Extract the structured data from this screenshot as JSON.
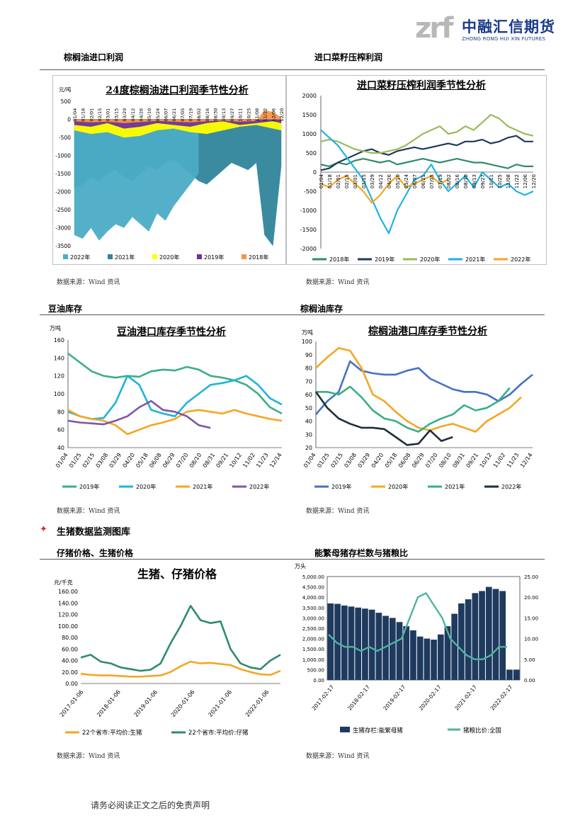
{
  "header": {
    "logo_letters": "zrf",
    "logo_cn": "中融汇信期货",
    "logo_en": "ZHONG RONG HUI XIN FUTURES"
  },
  "sections": {
    "palm_oil_import_profit": "棕榈油进口利润",
    "rapeseed_crush_profit": "进口菜籽压榨利润",
    "soy_oil_stock": "豆油库存",
    "palm_oil_stock": "棕榈油库存",
    "hog_monitor": "生猪数据监测图库",
    "piglet_hog_price": "仔猪价格、生猪价格",
    "sow_hog_grain": "能繁母猪存栏数与猪粮比"
  },
  "source_text": "数据来源：Wind 资讯",
  "footer": "请务必阅读正文之后的免责声明",
  "chart_data": [
    {
      "id": "palm_profit",
      "type": "area",
      "title": "24度棕榈油进口利润季节性分析",
      "ylabel": "元/吨",
      "ylim": [
        -3500,
        500
      ],
      "yticks": [
        500,
        0,
        -500,
        -1000,
        -1500,
        -2000,
        -2500,
        -3000,
        -3500
      ],
      "xticks": [
        "01/04",
        "01/18",
        "02/01",
        "02/15",
        "03/01",
        "03/15",
        "03/29",
        "04/12",
        "04/26",
        "05/10",
        "05/24",
        "06/07",
        "06/21",
        "07/05",
        "07/19",
        "08/02",
        "08/16",
        "08/30",
        "09/13",
        "09/27",
        "10/11",
        "10/25",
        "11/08",
        "11/22",
        "12/06",
        "12/20"
      ],
      "colors": {
        "2022年": "#4bacc6",
        "2021年": "#31859b",
        "2020年": "#ffff00",
        "2019年": "#7030a0",
        "2018年": "#f79646"
      },
      "series": [
        {
          "name": "2022年",
          "x": [
            "01/04",
            "01/18",
            "02/01",
            "02/15",
            "03/01",
            "03/15",
            "03/29",
            "04/12",
            "04/26",
            "05/10",
            "05/24",
            "06/07",
            "06/21",
            "07/05",
            "07/19",
            "08/02"
          ],
          "values": [
            -3200,
            -3300,
            -3000,
            -3350,
            -3100,
            -2900,
            -3000,
            -2700,
            -2900,
            -3100,
            -2600,
            -2800,
            -2400,
            -2100,
            -1800,
            -1500
          ]
        },
        {
          "name": "2021年",
          "x": [
            "01/04",
            "01/18",
            "02/01",
            "02/15",
            "03/01",
            "03/15",
            "03/29",
            "04/12",
            "04/26",
            "05/10",
            "05/24",
            "06/07",
            "06/21",
            "07/05",
            "07/19",
            "08/02",
            "08/16",
            "08/30",
            "09/13",
            "09/27",
            "10/11",
            "10/25",
            "11/08",
            "11/22",
            "12/06",
            "12/20"
          ],
          "values": [
            -1900,
            -1800,
            -1600,
            -1700,
            -1500,
            -1400,
            -1600,
            -1700,
            -1500,
            -1300,
            -1400,
            -1200,
            -1100,
            -1300,
            -1500,
            -1700,
            -1800,
            -1600,
            -1400,
            -1200,
            -1300,
            -1400,
            -1200,
            -3200,
            -3500,
            -1300
          ]
        },
        {
          "name": "2020年",
          "x": [
            "01/04",
            "02/01",
            "03/01",
            "03/29",
            "04/26",
            "05/24",
            "06/21",
            "07/19",
            "08/16",
            "09/13",
            "10/11",
            "11/08",
            "12/06",
            "12/20"
          ],
          "values": [
            -300,
            -400,
            -350,
            -500,
            -450,
            -300,
            -250,
            -350,
            -400,
            -300,
            -200,
            -150,
            -250,
            -300
          ]
        },
        {
          "name": "2019年",
          "x": [
            "01/04",
            "02/01",
            "03/01",
            "03/29",
            "04/26",
            "05/24",
            "06/21",
            "07/19",
            "08/16",
            "09/13",
            "10/11",
            "11/08",
            "12/06",
            "12/20"
          ],
          "values": [
            -150,
            -200,
            -100,
            -250,
            -200,
            -100,
            -150,
            -200,
            -100,
            -50,
            -150,
            -100,
            -50,
            -100
          ]
        },
        {
          "name": "2018年",
          "x": [
            "01/04",
            "02/01",
            "03/01",
            "03/29",
            "04/26",
            "05/24",
            "06/21",
            "07/19",
            "08/16",
            "09/13",
            "10/11",
            "11/08",
            "11/22",
            "12/06",
            "12/20"
          ],
          "values": [
            -50,
            -80,
            -60,
            -100,
            -70,
            -40,
            -60,
            -80,
            -50,
            -30,
            -60,
            -40,
            250,
            200,
            50
          ]
        }
      ],
      "legend": "bottom"
    },
    {
      "id": "rapeseed_profit",
      "type": "line",
      "title": "进口菜籽压榨利润季节性分析",
      "ylim": [
        -2000,
        2000
      ],
      "yticks": [
        2000,
        1500,
        1000,
        500,
        0,
        -500,
        -1000,
        -1500,
        -2000
      ],
      "xticks": [
        "01/04",
        "01/18",
        "02/01",
        "02/15",
        "03/01",
        "03/15",
        "03/29",
        "04/12",
        "04/26",
        "05/10",
        "05/24",
        "06/07",
        "06/21",
        "07/05",
        "07/19",
        "08/02",
        "08/16",
        "08/30",
        "09/13",
        "09/27",
        "10/11",
        "10/25",
        "11/08",
        "11/22",
        "12/06",
        "12/20"
      ],
      "series": [
        {
          "name": "2018年",
          "color": "#2e8b6e",
          "values": [
            200,
            150,
            250,
            200,
            300,
            350,
            300,
            250,
            300,
            200,
            250,
            300,
            350,
            300,
            250,
            300,
            350,
            300,
            250,
            250,
            200,
            150,
            100,
            200,
            150,
            150
          ]
        },
        {
          "name": "2019年",
          "color": "#1f3a5f",
          "values": [
            50,
            100,
            250,
            350,
            450,
            550,
            600,
            500,
            450,
            550,
            600,
            650,
            600,
            650,
            700,
            750,
            700,
            800,
            800,
            850,
            750,
            800,
            900,
            950,
            800,
            800
          ]
        },
        {
          "name": "2020年",
          "color": "#9bbb59",
          "values": [
            800,
            850,
            800,
            700,
            600,
            550,
            500,
            500,
            550,
            600,
            700,
            850,
            1000,
            1100,
            1200,
            1000,
            1050,
            1200,
            1100,
            1300,
            1500,
            1400,
            1200,
            1100,
            1000,
            950
          ]
        },
        {
          "name": "2021年",
          "color": "#1fb3e0",
          "values": [
            1100,
            900,
            700,
            400,
            100,
            -200,
            -700,
            -1200,
            -1600,
            -1000,
            -600,
            -200,
            -100,
            200,
            -200,
            -500,
            -300,
            -100,
            -400,
            0,
            -200,
            -400,
            -300,
            -500,
            -600,
            -500
          ]
        },
        {
          "name": "2022年",
          "color": "#f5a623",
          "values": [
            -300,
            -400,
            -200,
            -100,
            -300,
            -500,
            -800,
            -600,
            -300,
            -100,
            -400,
            -300,
            -200,
            -100,
            -300,
            -200
          ]
        }
      ],
      "legend": "bottom"
    },
    {
      "id": "soy_oil_stock",
      "type": "line",
      "title": "豆油港口库存季节性分析",
      "ylabel": "万吨",
      "ylim": [
        40,
        160
      ],
      "yticks": [
        160,
        140,
        120,
        100,
        80,
        60,
        40
      ],
      "xticks": [
        "01/04",
        "01/25",
        "02/15",
        "03/08",
        "03/29",
        "04/20",
        "05/18",
        "06/08",
        "06/29",
        "07/20",
        "08/10",
        "08/31",
        "09/21",
        "10/12",
        "11/02",
        "11/23",
        "12/14"
      ],
      "series": [
        {
          "name": "2019年",
          "color": "#3aaf85",
          "values": [
            145,
            135,
            125,
            120,
            118,
            120,
            119,
            125,
            127,
            126,
            130,
            127,
            120,
            118,
            115,
            110,
            100,
            85,
            78
          ]
        },
        {
          "name": "2020年",
          "color": "#1fb3e0",
          "values": [
            80,
            75,
            72,
            73,
            90,
            120,
            110,
            82,
            78,
            75,
            90,
            100,
            110,
            112,
            115,
            120,
            110,
            95,
            88
          ]
        },
        {
          "name": "2021年",
          "color": "#f5a623",
          "values": [
            82,
            75,
            72,
            70,
            65,
            55,
            60,
            65,
            68,
            72,
            80,
            82,
            80,
            78,
            82,
            78,
            75,
            72,
            70
          ]
        },
        {
          "name": "2022年",
          "color": "#7d56a8",
          "values": [
            70,
            68,
            67,
            66,
            70,
            75,
            85,
            92,
            82,
            80,
            75,
            65,
            62
          ]
        }
      ],
      "legend": "bottom"
    },
    {
      "id": "palm_oil_stock",
      "type": "line",
      "title": "棕榈油港口库存季节性分析",
      "ylabel": "万吨",
      "ylim": [
        20,
        100
      ],
      "yticks": [
        100,
        90,
        80,
        70,
        60,
        50,
        40,
        30,
        20
      ],
      "xticks": [
        "01/04",
        "01/25",
        "02/15",
        "03/08",
        "03/29",
        "04/20",
        "05/18",
        "06/08",
        "06/29",
        "07/20",
        "08/10",
        "08/31",
        "09/21",
        "10/12",
        "11/02",
        "11/23",
        "12/14"
      ],
      "series": [
        {
          "name": "2019年",
          "color": "#4472c4",
          "values": [
            45,
            55,
            62,
            85,
            78,
            76,
            75,
            75,
            78,
            80,
            72,
            68,
            64,
            62,
            62,
            60,
            55,
            60,
            68,
            75
          ]
        },
        {
          "name": "2020年",
          "color": "#f5a623",
          "values": [
            80,
            88,
            95,
            93,
            80,
            60,
            55,
            47,
            40,
            35,
            33,
            36,
            38,
            35,
            32,
            40,
            45,
            50,
            58
          ]
        },
        {
          "name": "2021年",
          "color": "#3aaf85",
          "values": [
            62,
            62,
            60,
            66,
            58,
            48,
            42,
            40,
            35,
            32,
            38,
            42,
            45,
            52,
            48,
            50,
            55,
            65
          ]
        },
        {
          "name": "2022年",
          "color": "#1f2d3d",
          "values": [
            62,
            50,
            42,
            38,
            35,
            35,
            34,
            28,
            22,
            23,
            33,
            25,
            28
          ]
        }
      ],
      "legend": "bottom"
    },
    {
      "id": "hog_piglet_price",
      "type": "line",
      "title": "生猪、仔猪价格",
      "ylabel": "元/千克",
      "ylim": [
        0,
        160
      ],
      "yticks": [
        "160.00",
        "140.00",
        "120.00",
        "100.00",
        "80.00",
        "60.00",
        "40.00",
        "20.00",
        "0.00"
      ],
      "xticks": [
        "2017-01-06",
        "2018-01-06",
        "2019-01-06",
        "2020-01-06",
        "2021-01-06",
        "2022-01-06"
      ],
      "series": [
        {
          "name": "22个省市:平均价:生猪",
          "color": "#f5a623",
          "values": [
            17,
            15,
            14,
            14,
            13,
            12,
            12,
            13,
            14,
            20,
            30,
            38,
            35,
            36,
            34,
            32,
            25,
            20,
            16,
            15,
            22
          ]
        },
        {
          "name": "22个省市:平均价:仔猪",
          "color": "#2e8b6e",
          "values": [
            45,
            50,
            38,
            35,
            28,
            25,
            22,
            24,
            35,
            70,
            100,
            135,
            110,
            105,
            108,
            60,
            35,
            28,
            25,
            40,
            50
          ]
        }
      ],
      "legend": "bottom"
    },
    {
      "id": "sow_hog_grain",
      "type": "bar",
      "ylabel": "万头",
      "ylim": [
        0,
        5000
      ],
      "yticks": [
        "5,000.00",
        "4,500.00",
        "4,000.00",
        "3,500.00",
        "3,000.00",
        "2,500.00",
        "2,000.00",
        "1,500.00",
        "1,000.00",
        "500.00",
        "0.00"
      ],
      "y2lim": [
        0,
        25
      ],
      "y2ticks": [
        "25.00",
        "20.00",
        "15.00",
        "10.00",
        "5.00",
        "0.00"
      ],
      "xticks": [
        "2017-02-17",
        "2018-02-17",
        "2019-02-17",
        "2020-02-17",
        "2021-02-17",
        "2022-02-17"
      ],
      "series": [
        {
          "name": "生猪存栏:能繁母猪",
          "color": "#1f3a5f",
          "values": [
            3700,
            3680,
            3600,
            3550,
            3500,
            3450,
            3400,
            3250,
            3100,
            3000,
            2800,
            2600,
            2400,
            2100,
            2000,
            1950,
            2200,
            2600,
            3200,
            3700,
            3900,
            4200,
            4300,
            4500,
            4400,
            4300,
            500,
            500
          ]
        },
        {
          "name": "猪粮比价:全国",
          "color": "#4fb3a0",
          "values": [
            11,
            9,
            8,
            8,
            7,
            8,
            7,
            8,
            9,
            10,
            15,
            20,
            21,
            18,
            15,
            10,
            8,
            6,
            5,
            5,
            6,
            8,
            8
          ]
        }
      ],
      "legend": "bottom"
    }
  ]
}
